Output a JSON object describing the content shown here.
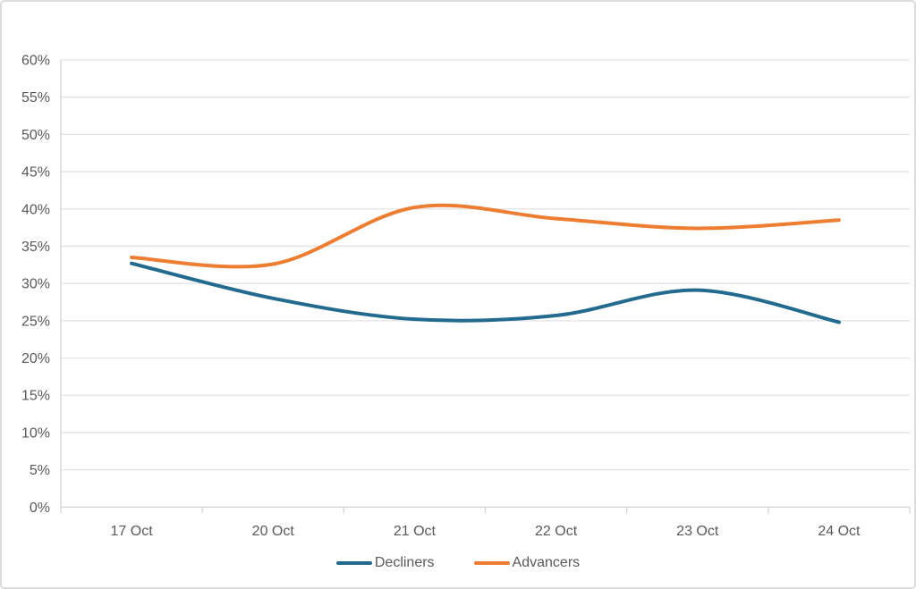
{
  "chart_data": {
    "type": "line",
    "title": "",
    "xlabel": "",
    "ylabel": "",
    "categories": [
      "17 Oct",
      "20 Oct",
      "21 Oct",
      "22 Oct",
      "23 Oct",
      "24 Oct"
    ],
    "series": [
      {
        "name": "Decliners",
        "color": "#236B8E",
        "values": [
          32.7,
          28.0,
          25.2,
          25.7,
          29.1,
          24.8
        ]
      },
      {
        "name": "Advancers",
        "color": "#ED7D31",
        "values": [
          33.5,
          32.6,
          40.2,
          38.7,
          37.4,
          38.5
        ]
      }
    ],
    "ylim": [
      0,
      60
    ],
    "ytick_step": 5,
    "ytick_format": "percent",
    "ytick_labels": [
      "0%",
      "5%",
      "10%",
      "15%",
      "20%",
      "25%",
      "30%",
      "35%",
      "40%",
      "45%",
      "50%",
      "55%",
      "60%"
    ],
    "grid": true,
    "smooth": true,
    "line_width": 4,
    "legend_position": "bottom",
    "style": {
      "text_color": "#595959",
      "grid_color": "#e2e2e2",
      "axis_color": "#d4d4d4",
      "background": "#ffffff",
      "border_color": "#dcdcdc"
    }
  }
}
